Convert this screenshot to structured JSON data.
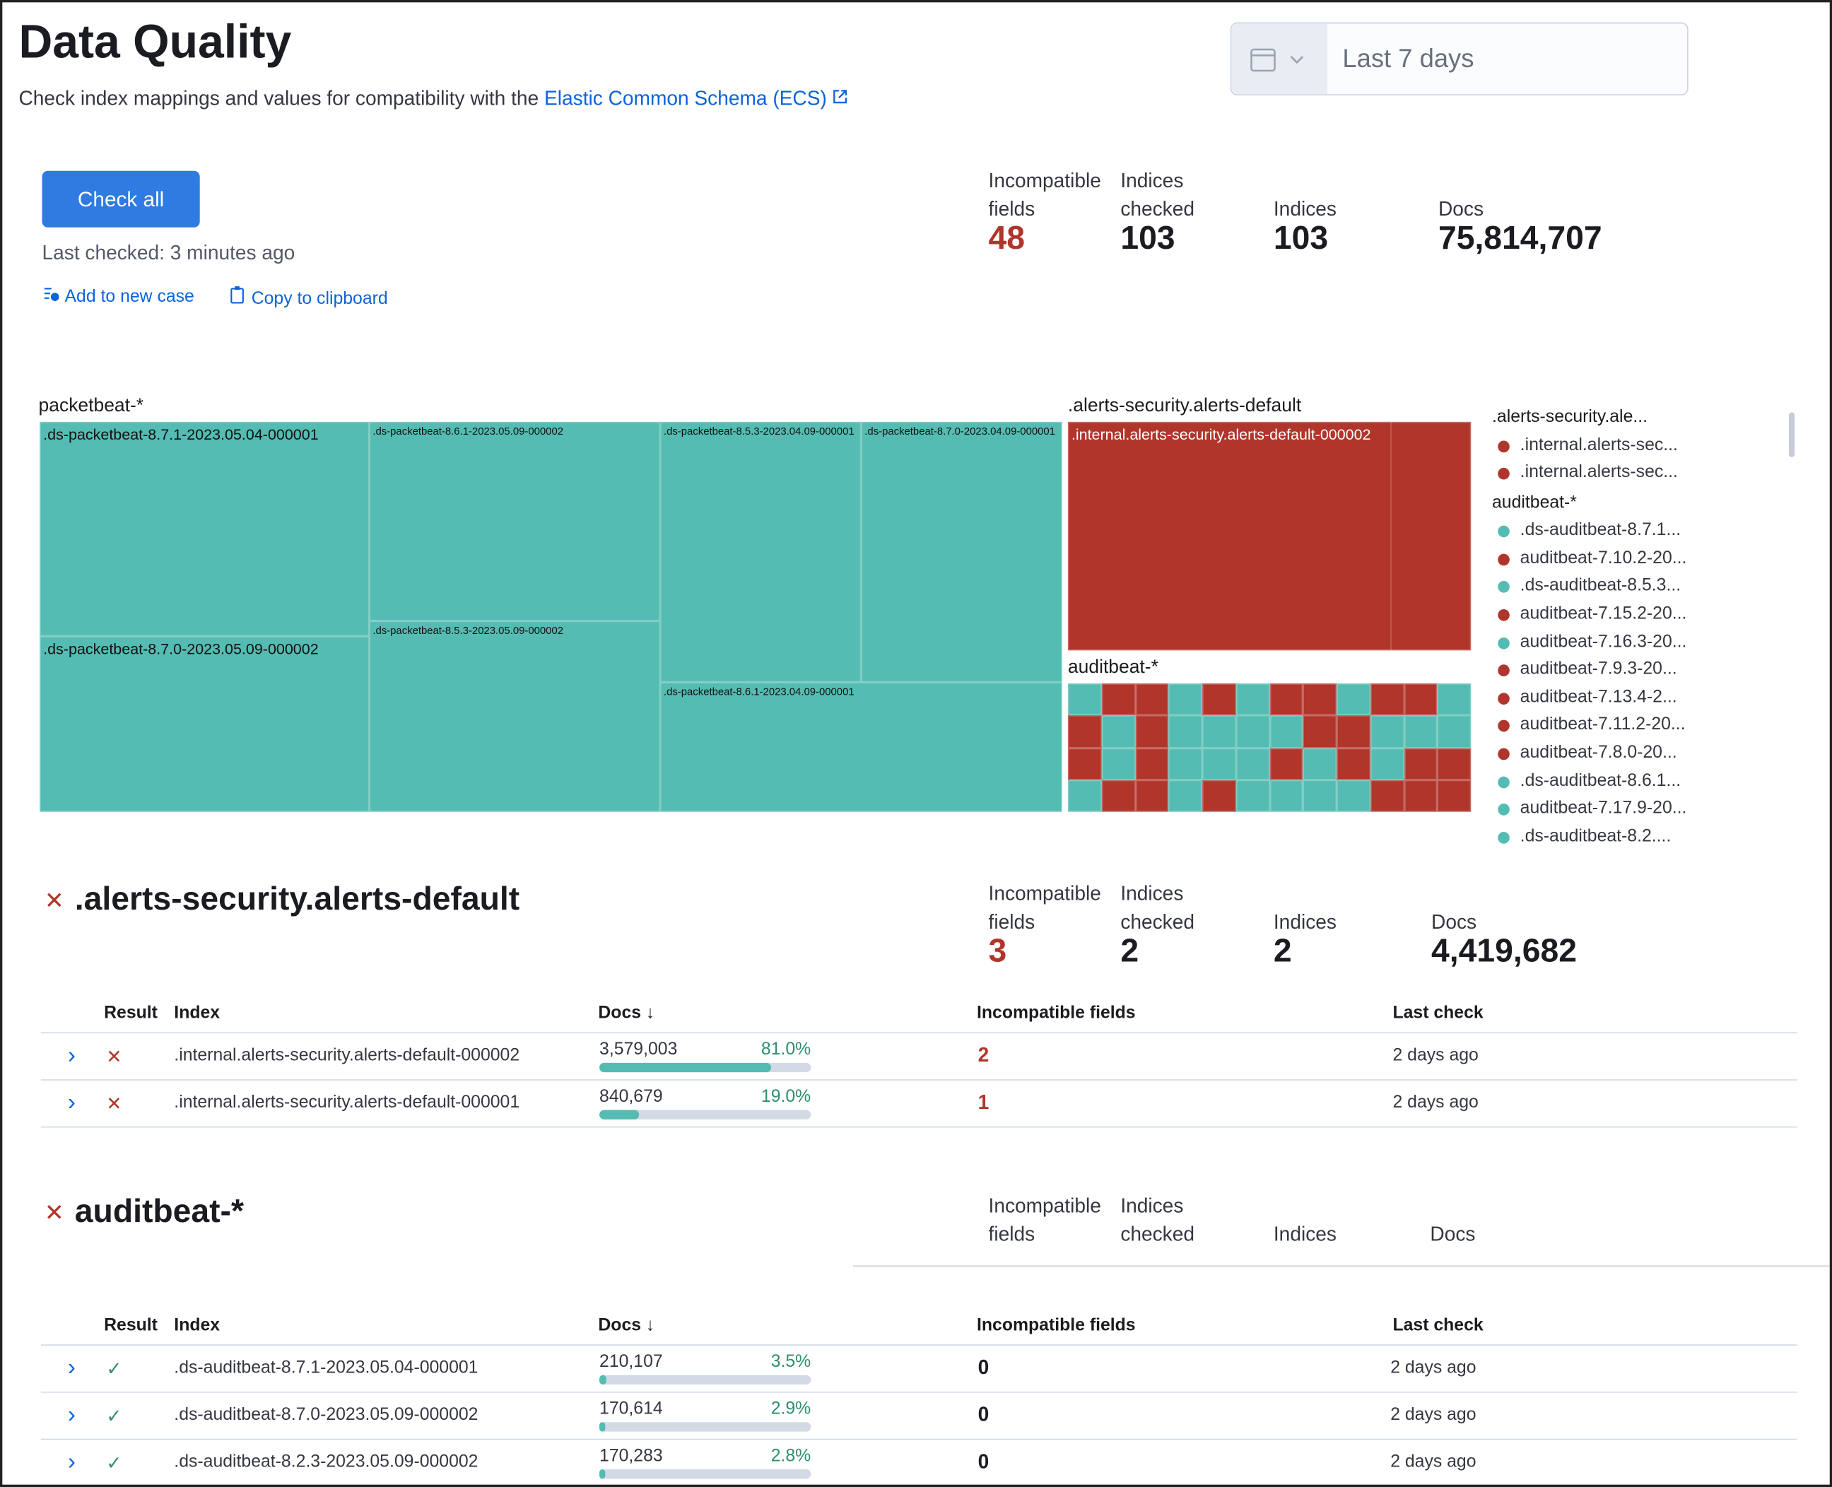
{
  "header": {
    "title": "Data Quality",
    "subtitle": "Check index mappings and values for compatibility with the",
    "link": "Elastic Common Schema (ECS)",
    "date_range": "Last 7 days"
  },
  "actions": {
    "check_all": "Check all",
    "last_checked": "Last checked: 3 minutes ago",
    "add_to_case": "Add to new case",
    "copy": "Copy to clipboard"
  },
  "summary": {
    "stats": [
      {
        "label": "Incompatible fields",
        "value": "48"
      },
      {
        "label": "Indices checked",
        "value": "103"
      },
      {
        "label": "Indices",
        "value": "103"
      },
      {
        "label": "Docs",
        "value": "75,814,707"
      }
    ]
  },
  "treemap": {
    "groups": [
      {
        "name": "packetbeat-*",
        "cells": [
          ".ds-packetbeat-8.7.1-2023.05.04-000001",
          ".ds-packetbeat-8.7.0-2023.05.09-000002",
          ".ds-packetbeat-8.6.1-2023.05.09-000002",
          ".ds-packetbeat-8.5.3-2023.05.09-000002",
          ".ds-packetbeat-8.5.3-2023.04.09-000001",
          ".ds-packetbeat-8.7.0-2023.04.09-000001",
          ".ds-packetbeat-8.6.1-2023.04.09-000001"
        ]
      },
      {
        "name": ".alerts-security.alerts-default",
        "cells": [
          ".internal.alerts-security.alerts-default-000002"
        ]
      },
      {
        "name": "auditbeat-*",
        "cells": []
      }
    ],
    "legend": [
      {
        "header": ".alerts-security.ale...",
        "items": [
          {
            "label": ".internal.alerts-sec...",
            "color": "#b0352b"
          },
          {
            "label": ".internal.alerts-sec...",
            "color": "#b0352b"
          }
        ]
      },
      {
        "header": "auditbeat-*",
        "items": [
          {
            "label": ".ds-auditbeat-8.7.1...",
            "color": "#54bcb2"
          },
          {
            "label": "auditbeat-7.10.2-20...",
            "color": "#b0352b"
          },
          {
            "label": ".ds-auditbeat-8.5.3...",
            "color": "#54bcb2"
          },
          {
            "label": "auditbeat-7.15.2-20...",
            "color": "#b0352b"
          },
          {
            "label": "auditbeat-7.16.3-20...",
            "color": "#54bcb2"
          },
          {
            "label": "auditbeat-7.9.3-20...",
            "color": "#b0352b"
          },
          {
            "label": "auditbeat-7.13.4-2...",
            "color": "#b0352b"
          },
          {
            "label": "auditbeat-7.11.2-20...",
            "color": "#b0352b"
          },
          {
            "label": "auditbeat-7.8.0-20...",
            "color": "#b0352b"
          },
          {
            "label": ".ds-auditbeat-8.6.1...",
            "color": "#54bcb2"
          },
          {
            "label": "auditbeat-7.17.9-20...",
            "color": "#54bcb2"
          },
          {
            "label": ".ds-auditbeat-8.2....",
            "color": "#54bcb2"
          }
        ]
      }
    ]
  },
  "patterns": [
    {
      "title": ".alerts-security.alerts-default",
      "stats": [
        {
          "label": "Incompatible fields",
          "value": "3"
        },
        {
          "label": "Indices checked",
          "value": "2"
        },
        {
          "label": "Indices",
          "value": "2"
        },
        {
          "label": "Docs",
          "value": "4,419,682"
        }
      ],
      "columns": [
        "Result",
        "Index",
        "Docs",
        "Incompatible fields",
        "Last check"
      ],
      "rows": [
        {
          "result": "fail",
          "index": ".internal.alerts-security.alerts-default-000002",
          "docs": "3,579,003",
          "pct": {
            "value": 81,
            "label": "81.0%"
          },
          "incompatible": "2",
          "last_check": "2 days ago"
        },
        {
          "result": "fail",
          "index": ".internal.alerts-security.alerts-default-000001",
          "docs": "840,679",
          "pct": {
            "value": 19,
            "label": "19.0%"
          },
          "incompatible": "1",
          "last_check": "2 days ago"
        }
      ]
    },
    {
      "title": "auditbeat-*",
      "stats": [
        {
          "label": "Incompatible fields"
        },
        {
          "label": "Indices checked"
        },
        {
          "label": "Indices"
        },
        {
          "label": "Docs"
        }
      ],
      "columns": [
        "Result",
        "Index",
        "Docs",
        "Incompatible fields",
        "Last check"
      ],
      "rows": [
        {
          "result": "pass",
          "index": ".ds-auditbeat-8.7.1-2023.05.04-000001",
          "docs": "210,107",
          "pct": {
            "value": 3.5,
            "label": "3.5%"
          },
          "incompatible": "0",
          "last_check": "2 days ago"
        },
        {
          "result": "pass",
          "index": ".ds-auditbeat-8.7.0-2023.05.09-000002",
          "docs": "170,614",
          "pct": {
            "value": 2.9,
            "label": "2.9%"
          },
          "incompatible": "0",
          "last_check": "2 days ago"
        },
        {
          "result": "pass",
          "index": ".ds-auditbeat-8.2.3-2023.05.09-000002",
          "docs": "170,283",
          "pct": {
            "value": 2.8,
            "label": "2.8%"
          },
          "incompatible": "0",
          "last_check": "2 days ago"
        }
      ]
    }
  ]
}
